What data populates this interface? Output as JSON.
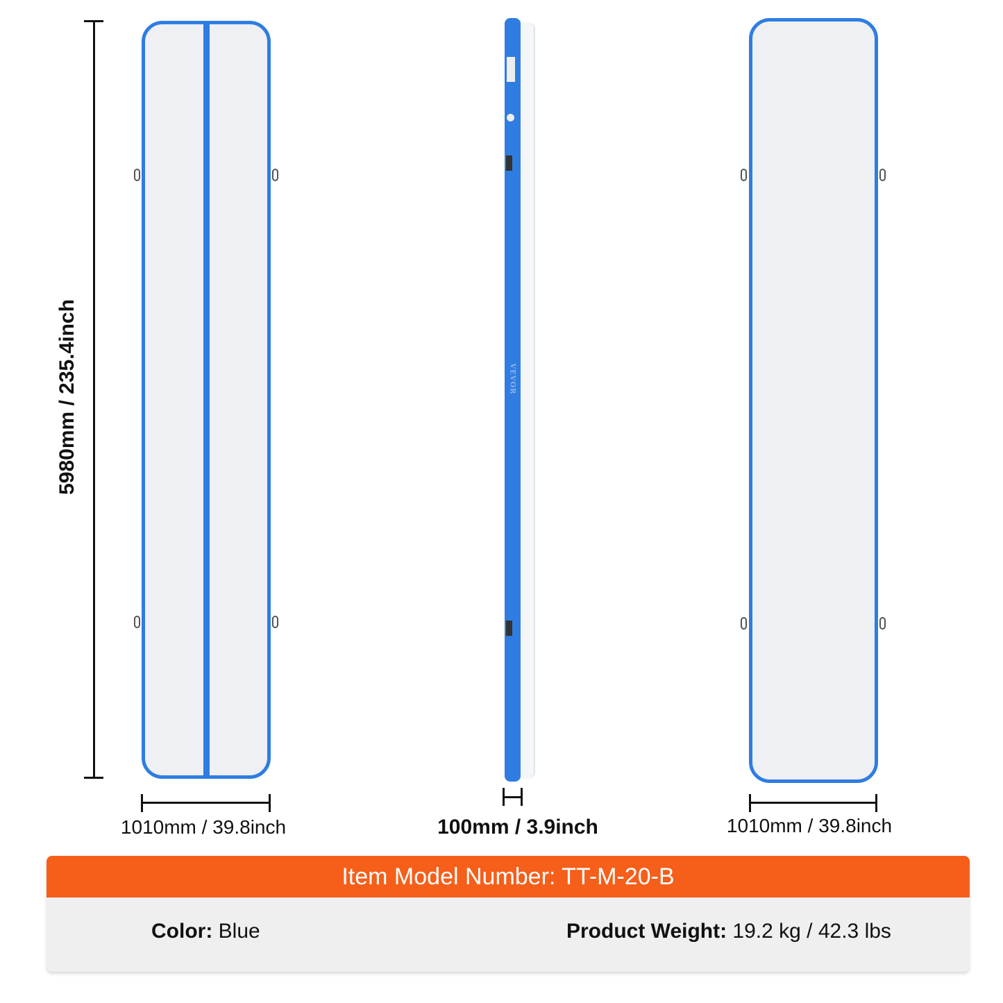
{
  "colors": {
    "mat_blue": "#2f7de1",
    "mat_surface": "#eef0f3",
    "header_orange": "#f55f1a",
    "panel_gray": "#efefef"
  },
  "dimensions": {
    "length": "5980mm / 235.4inch",
    "width_left": "1010mm / 39.8inch",
    "thickness": "100mm / 3.9inch",
    "width_right": "1010mm / 39.8inch"
  },
  "specs": {
    "model": "Item Model Number: TT-M-20-B",
    "color_label": "Color:",
    "color_value": " Blue",
    "weight_label": "Product Weight:",
    "weight_value": " 19.2 kg / 42.3 lbs"
  },
  "side_view": {
    "brand_mark": "VEVOR"
  }
}
